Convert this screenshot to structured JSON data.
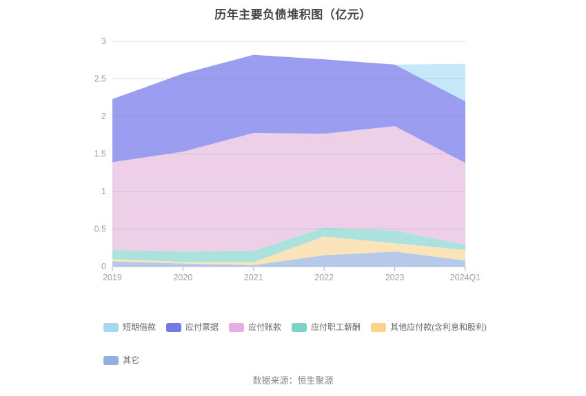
{
  "title": "历年主要负债堆积图（亿元）",
  "source": "数据来源：恒生聚源",
  "chart_data": {
    "type": "area",
    "stacked": true,
    "title": "历年主要负债堆积图（亿元）",
    "categories": [
      "2019",
      "2020",
      "2021",
      "2022",
      "2023",
      "2024Q1"
    ],
    "series": [
      {
        "name": "短期借款",
        "values": [
          0,
          0,
          0,
          0,
          0,
          0.5
        ],
        "swatch": "#a3d8f2",
        "fill": "#c5e9f8"
      },
      {
        "name": "应付票据",
        "values": [
          0.84,
          1.04,
          1.04,
          0.99,
          0.82,
          0.82
        ],
        "swatch": "#7579e7",
        "fill": "#9a9df0"
      },
      {
        "name": "应付账款",
        "values": [
          1.17,
          1.33,
          1.57,
          1.25,
          1.39,
          1.09
        ],
        "swatch": "#e5aede",
        "fill": "#edcfe8"
      },
      {
        "name": "应付职工薪酬",
        "values": [
          0.12,
          0.14,
          0.15,
          0.12,
          0.17,
          0.07
        ],
        "swatch": "#7ad3cb",
        "fill": "#abe2dd"
      },
      {
        "name": "其他应付款(含利息和股利)",
        "values": [
          0.03,
          0.02,
          0.04,
          0.25,
          0.11,
          0.14
        ],
        "swatch": "#fbd38b",
        "fill": "#fce4ba"
      },
      {
        "name": "其它",
        "values": [
          0.07,
          0.04,
          0.02,
          0.15,
          0.2,
          0.08
        ],
        "swatch": "#8fb0e0",
        "fill": "#b5c9e8"
      }
    ],
    "series_order_note": "series listed top-to-bottom of stack (legend order); stacking bottom layer is last item",
    "ylim": [
      0,
      3
    ],
    "yticks": [
      0,
      0.5,
      1,
      1.5,
      2,
      2.5,
      3
    ],
    "grid": true,
    "legend_position": "bottom"
  }
}
